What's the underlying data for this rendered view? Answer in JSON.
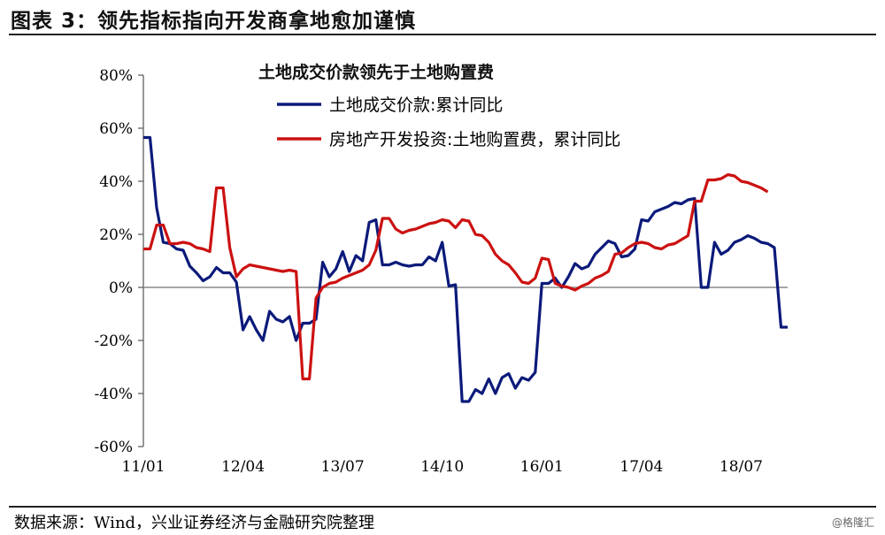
{
  "header": {
    "title": "图表 3：领先指标指向开发商拿地愈加谨慎"
  },
  "footer": {
    "source": "数据来源：Wind，兴业证券经济与金融研究院整理",
    "watermark": "@格隆汇"
  },
  "chart_data": {
    "type": "line",
    "title": "土地成交价款领先于土地购置费",
    "xlabel": "",
    "ylabel": "",
    "ylim": [
      -60,
      80
    ],
    "yticks": [
      "80%",
      "60%",
      "40%",
      "20%",
      "0%",
      "-20%",
      "-40%",
      "-60%"
    ],
    "xticks": [
      "11/01",
      "12/04",
      "13/07",
      "14/10",
      "16/01",
      "17/04",
      "18/07"
    ],
    "grid": false,
    "legend_position": "top-center",
    "colors": {
      "land_transaction": "#0b1a7a",
      "land_purchase": "#cc1111",
      "zero_line": "#888888"
    },
    "series": [
      {
        "name": "土地成交价款:累计同比",
        "color": "#0b1a7a",
        "points": [
          [
            0,
            56.5
          ],
          [
            1,
            56.5
          ],
          [
            2,
            30
          ],
          [
            3,
            17
          ],
          [
            4,
            16.5
          ],
          [
            5,
            14.5
          ],
          [
            6,
            14
          ],
          [
            7,
            8
          ],
          [
            8,
            5.5
          ],
          [
            9,
            2.5
          ],
          [
            10,
            4
          ],
          [
            11,
            7.5
          ],
          [
            12,
            5.5
          ],
          [
            13,
            5.5
          ],
          [
            14,
            2
          ],
          [
            15,
            -16
          ],
          [
            16,
            -11
          ],
          [
            17,
            -16
          ],
          [
            18,
            -20
          ],
          [
            19,
            -9
          ],
          [
            20,
            -12
          ],
          [
            21,
            -13
          ],
          [
            22,
            -11
          ],
          [
            23,
            -20
          ],
          [
            24,
            -13.5
          ],
          [
            25,
            -13.5
          ],
          [
            26,
            -12
          ],
          [
            27,
            9.5
          ],
          [
            28,
            4
          ],
          [
            29,
            7
          ],
          [
            30,
            13.5
          ],
          [
            31,
            6
          ],
          [
            32,
            12
          ],
          [
            33,
            10
          ],
          [
            34,
            24.5
          ],
          [
            35,
            25.5
          ],
          [
            36,
            8.5
          ],
          [
            37,
            8.5
          ],
          [
            38,
            9.5
          ],
          [
            39,
            8.5
          ],
          [
            40,
            8
          ],
          [
            41,
            8.5
          ],
          [
            42,
            8.5
          ],
          [
            43,
            11.5
          ],
          [
            44,
            10
          ],
          [
            45,
            17
          ],
          [
            46,
            0.5
          ],
          [
            47,
            1
          ],
          [
            48,
            -43
          ],
          [
            49,
            -43
          ],
          [
            50,
            -38.5
          ],
          [
            51,
            -40
          ],
          [
            52,
            -34.5
          ],
          [
            53,
            -40
          ],
          [
            54,
            -34
          ],
          [
            55,
            -32.5
          ],
          [
            56,
            -38
          ],
          [
            57,
            -34
          ],
          [
            58,
            -35
          ],
          [
            59,
            -32
          ],
          [
            60,
            1.5
          ],
          [
            61,
            1.5
          ],
          [
            62,
            3.5
          ],
          [
            63,
            0
          ],
          [
            64,
            4
          ],
          [
            65,
            9
          ],
          [
            66,
            7
          ],
          [
            67,
            8
          ],
          [
            68,
            12.5
          ],
          [
            69,
            15
          ],
          [
            70,
            17.5
          ],
          [
            71,
            16.5
          ],
          [
            72,
            11.5
          ],
          [
            73,
            12
          ],
          [
            74,
            14.5
          ],
          [
            75,
            25.5
          ],
          [
            76,
            25
          ],
          [
            77,
            28.5
          ],
          [
            78,
            29.5
          ],
          [
            79,
            30.5
          ],
          [
            80,
            32
          ],
          [
            81,
            31.5
          ],
          [
            82,
            33
          ],
          [
            83,
            33.5
          ],
          [
            84,
            0
          ],
          [
            85,
            0
          ],
          [
            86,
            17
          ],
          [
            87,
            12.5
          ],
          [
            88,
            14
          ],
          [
            89,
            17
          ],
          [
            90,
            18
          ],
          [
            91,
            19.5
          ],
          [
            92,
            18.5
          ],
          [
            93,
            17
          ],
          [
            94,
            16.5
          ],
          [
            95,
            15
          ],
          [
            96,
            -15
          ],
          [
            97,
            -15
          ]
        ]
      },
      {
        "name": "房地产开发投资:土地购置费，累计同比",
        "color": "#cc1111",
        "points": [
          [
            0,
            14.5
          ],
          [
            1,
            14.5
          ],
          [
            2,
            23.5
          ],
          [
            3,
            23.5
          ],
          [
            4,
            16.5
          ],
          [
            5,
            16.5
          ],
          [
            6,
            17
          ],
          [
            7,
            16.5
          ],
          [
            8,
            15
          ],
          [
            9,
            14.5
          ],
          [
            10,
            13.5
          ],
          [
            11,
            37.5
          ],
          [
            12,
            37.5
          ],
          [
            13,
            15
          ],
          [
            14,
            4
          ],
          [
            15,
            7
          ],
          [
            16,
            8.5
          ],
          [
            17,
            8
          ],
          [
            18,
            7.5
          ],
          [
            19,
            7
          ],
          [
            20,
            6.5
          ],
          [
            21,
            6
          ],
          [
            22,
            6.5
          ],
          [
            23,
            6
          ],
          [
            24,
            -34.5
          ],
          [
            25,
            -34.5
          ],
          [
            26,
            -4
          ],
          [
            27,
            0
          ],
          [
            28,
            1.5
          ],
          [
            29,
            2
          ],
          [
            30,
            3.5
          ],
          [
            31,
            4.5
          ],
          [
            32,
            5.5
          ],
          [
            33,
            6.5
          ],
          [
            34,
            8.5
          ],
          [
            35,
            14
          ],
          [
            36,
            26
          ],
          [
            37,
            26
          ],
          [
            38,
            22
          ],
          [
            39,
            20.5
          ],
          [
            40,
            21.5
          ],
          [
            41,
            22
          ],
          [
            42,
            23
          ],
          [
            43,
            24
          ],
          [
            44,
            24.5
          ],
          [
            45,
            25.5
          ],
          [
            46,
            25
          ],
          [
            47,
            22.5
          ],
          [
            48,
            25.5
          ],
          [
            49,
            25
          ],
          [
            50,
            20
          ],
          [
            51,
            19.5
          ],
          [
            52,
            17
          ],
          [
            53,
            12.5
          ],
          [
            54,
            10
          ],
          [
            55,
            8.5
          ],
          [
            56,
            5.5
          ],
          [
            57,
            2
          ],
          [
            58,
            1.5
          ],
          [
            59,
            3.5
          ],
          [
            60,
            11
          ],
          [
            61,
            10.5
          ],
          [
            62,
            1.5
          ],
          [
            63,
            0.5
          ],
          [
            64,
            0
          ],
          [
            65,
            -1
          ],
          [
            66,
            0.5
          ],
          [
            67,
            1.5
          ],
          [
            68,
            3.5
          ],
          [
            69,
            4.5
          ],
          [
            70,
            6
          ],
          [
            71,
            12.5
          ],
          [
            72,
            13
          ],
          [
            73,
            15
          ],
          [
            74,
            16.5
          ],
          [
            75,
            17
          ],
          [
            76,
            16.5
          ],
          [
            77,
            15
          ],
          [
            78,
            14.5
          ],
          [
            79,
            16
          ],
          [
            80,
            16.5
          ],
          [
            81,
            18
          ],
          [
            82,
            19.5
          ],
          [
            83,
            32.5
          ],
          [
            84,
            32.5
          ],
          [
            85,
            40.5
          ],
          [
            86,
            40.5
          ],
          [
            87,
            41
          ],
          [
            88,
            42.5
          ],
          [
            89,
            42
          ],
          [
            90,
            40
          ],
          [
            91,
            39.5
          ],
          [
            92,
            38.5
          ],
          [
            93,
            37.5
          ],
          [
            94,
            36
          ]
        ]
      }
    ]
  }
}
